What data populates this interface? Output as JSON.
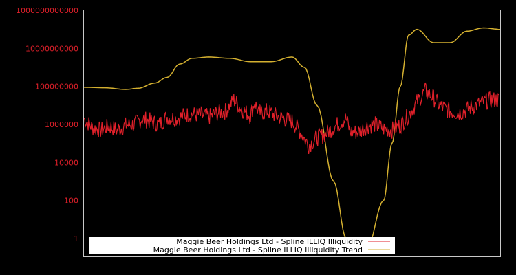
{
  "chart_data": {
    "type": "line",
    "title": "",
    "xlabel": "",
    "ylabel": "",
    "yscale": "log",
    "ylim": [
      0.3,
      1000000000000
    ],
    "grid": false,
    "legend_position": "bottom-center inside plot",
    "y_ticks": [
      "1000000000000",
      "10000000000",
      "100000000",
      "1000000",
      "10000",
      "100",
      "1"
    ],
    "x_ticks": [],
    "colors": {
      "background": "#000000",
      "axis": "#c8c8c8",
      "tick_label": "#e0202a",
      "illiquidity": "#e0202a",
      "trend": "#d4b030"
    },
    "series": [
      {
        "name": "Maggie Beer Holdings Ltd - Spline ILLIQ Illiquidity",
        "color": "#e0202a",
        "x_frac": [
          0,
          0.02,
          0.04,
          0.06,
          0.08,
          0.1,
          0.12,
          0.14,
          0.16,
          0.18,
          0.2,
          0.22,
          0.24,
          0.26,
          0.28,
          0.3,
          0.32,
          0.34,
          0.36,
          0.38,
          0.4,
          0.41,
          0.42,
          0.44,
          0.46,
          0.48,
          0.5,
          0.52,
          0.54,
          0.56,
          0.58,
          0.6,
          0.62,
          0.63,
          0.64,
          0.66,
          0.68,
          0.7,
          0.72,
          0.74,
          0.76,
          0.78,
          0.8,
          0.82,
          0.84,
          0.85,
          0.86,
          0.88,
          0.9,
          0.92,
          0.94,
          0.96,
          0.98,
          1.0
        ],
        "values": [
          2000000,
          700000,
          500000,
          800000,
          500000,
          900000,
          1000000,
          2000000,
          1500000,
          1000000,
          2500000,
          2000000,
          3000000,
          3500000,
          3000000,
          2500000,
          4000000,
          5000000,
          20000000,
          6000000,
          3000000,
          15000000,
          4000000,
          5000000,
          3000000,
          2000000,
          1500000,
          400000,
          80000,
          200000,
          300000,
          700000,
          1500000,
          2000000,
          400000,
          400000,
          800000,
          1000000,
          600000,
          500000,
          900000,
          3000000,
          15000000,
          60000000,
          25000000,
          12000000,
          8000000,
          5000000,
          4000000,
          6000000,
          10000000,
          15000000,
          20000000,
          20000000
        ]
      },
      {
        "name": "Maggie Beer Holdings Ltd - Spline ILLIQ Illiquidity Trend",
        "color": "#d4b030",
        "x_frac": [
          0,
          0.05,
          0.1,
          0.13,
          0.17,
          0.2,
          0.23,
          0.26,
          0.3,
          0.35,
          0.4,
          0.45,
          0.5,
          0.53,
          0.56,
          0.6,
          0.63,
          0.66,
          0.68,
          0.72,
          0.74,
          0.76,
          0.78,
          0.8,
          0.84,
          0.88,
          0.92,
          0.96,
          1.0
        ],
        "values": [
          90000000,
          85000000,
          70000000,
          80000000,
          150000000,
          300000000,
          1500000000,
          3000000000,
          3500000000,
          3000000000,
          2000000000,
          2000000000,
          3500000000,
          1000000000,
          10000000,
          1000,
          1,
          0.3,
          0.3,
          100,
          100000,
          100000000,
          50000000000,
          100000000000,
          20000000000,
          20000000000,
          80000000000,
          120000000000,
          100000000000
        ]
      }
    ]
  },
  "legend": {
    "items": [
      {
        "label": "Maggie Beer Holdings Ltd - Spline ILLIQ Illiquidity",
        "color": "#e0202a"
      },
      {
        "label": "Maggie Beer Holdings Ltd - Spline ILLIQ Illiquidity Trend",
        "color": "#d4b030"
      }
    ]
  }
}
